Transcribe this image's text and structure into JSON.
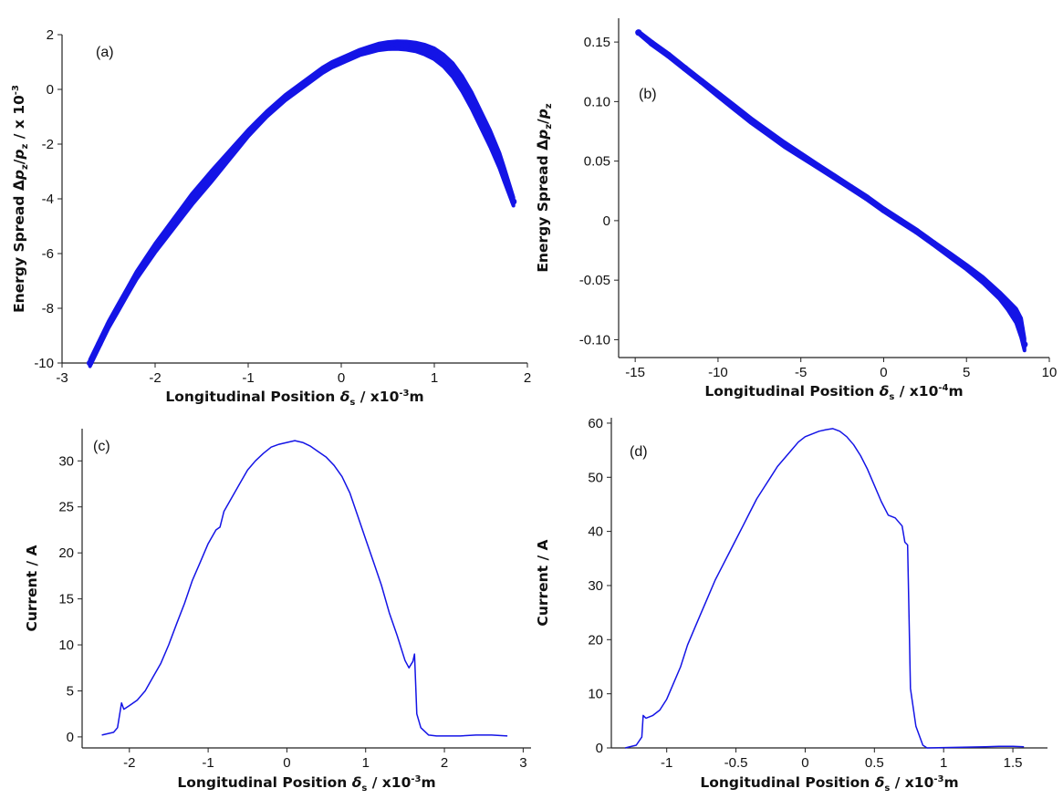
{
  "chart_data": [
    {
      "panel": "(a)",
      "type": "scatter",
      "xlabel_main": "Longitudinal Position ",
      "xlabel_sym": "δ",
      "xlabel_sub": "s",
      "xlabel_unit": " / x10",
      "xlabel_exp": "-3",
      "xlabel_tail": "m",
      "ylabel_main": "Energy Spread Δ",
      "ylabel_p1": "p",
      "ylabel_p1_sub": "z",
      "ylabel_slash": "/",
      "ylabel_p2": "p",
      "ylabel_p2_sub": "z",
      "ylabel_tail": " / x 10",
      "ylabel_exp": "-3",
      "xlim": [
        -3,
        2
      ],
      "ylim": [
        -10,
        2
      ],
      "xticks": [
        -3,
        -2,
        -1,
        0,
        1,
        2
      ],
      "xtick_labels": [
        "-3",
        "-2",
        "-1",
        "0",
        "1",
        "2"
      ],
      "yticks": [
        -10,
        -8,
        -6,
        -4,
        -2,
        0,
        2
      ],
      "ytick_labels": [
        "-10",
        "-8",
        "-6",
        "-4",
        "-2",
        "0",
        "2"
      ],
      "color": "#1414e6",
      "x": [
        -2.7,
        -2.6,
        -2.5,
        -2.4,
        -2.3,
        -2.2,
        -2.1,
        -2.0,
        -1.9,
        -1.8,
        -1.7,
        -1.6,
        -1.5,
        -1.4,
        -1.3,
        -1.2,
        -1.1,
        -1.0,
        -0.9,
        -0.8,
        -0.7,
        -0.6,
        -0.5,
        -0.4,
        -0.3,
        -0.2,
        -0.1,
        0.0,
        0.1,
        0.2,
        0.3,
        0.4,
        0.5,
        0.6,
        0.7,
        0.8,
        0.9,
        1.0,
        1.1,
        1.2,
        1.3,
        1.4,
        1.5,
        1.6,
        1.7,
        1.75,
        1.8,
        1.85
      ],
      "y": [
        -10.0,
        -9.3,
        -8.6,
        -8.0,
        -7.4,
        -6.8,
        -6.3,
        -5.8,
        -5.35,
        -4.9,
        -4.45,
        -4.0,
        -3.6,
        -3.2,
        -2.8,
        -2.4,
        -2.0,
        -1.6,
        -1.25,
        -0.9,
        -0.6,
        -0.3,
        -0.05,
        0.2,
        0.45,
        0.7,
        0.9,
        1.05,
        1.2,
        1.35,
        1.45,
        1.55,
        1.6,
        1.62,
        1.6,
        1.55,
        1.45,
        1.3,
        1.05,
        0.7,
        0.2,
        -0.4,
        -1.1,
        -1.8,
        -2.6,
        -3.1,
        -3.6,
        -4.1
      ],
      "band_halfwidth": [
        0.12,
        0.12,
        0.12,
        0.13,
        0.13,
        0.14,
        0.15,
        0.16,
        0.17,
        0.18,
        0.19,
        0.2,
        0.2,
        0.2,
        0.18,
        0.16,
        0.14,
        0.12,
        0.11,
        0.1,
        0.1,
        0.1,
        0.1,
        0.1,
        0.1,
        0.1,
        0.1,
        0.1,
        0.1,
        0.1,
        0.11,
        0.12,
        0.13,
        0.14,
        0.15,
        0.16,
        0.18,
        0.2,
        0.22,
        0.25,
        0.28,
        0.3,
        0.3,
        0.3,
        0.28,
        0.25,
        0.2,
        0.15
      ]
    },
    {
      "panel": "(b)",
      "type": "scatter",
      "xlabel_main": "Longitudinal Position ",
      "xlabel_sym": "δ",
      "xlabel_sub": "s",
      "xlabel_unit": " / x10",
      "xlabel_exp": "-4",
      "xlabel_tail": "m",
      "ylabel_main": "Energy Spread Δ",
      "ylabel_p1": "p",
      "ylabel_p1_sub": "z",
      "ylabel_slash": "/",
      "ylabel_p2": "p",
      "ylabel_p2_sub": "z",
      "xlim": [
        -16,
        10
      ],
      "ylim": [
        -0.115,
        0.17
      ],
      "xticks": [
        -15,
        -10,
        -5,
        0,
        5,
        10
      ],
      "xtick_labels": [
        "-15",
        "-10",
        "-5",
        "0",
        "5",
        "10"
      ],
      "yticks": [
        -0.1,
        -0.05,
        0,
        0.05,
        0.1,
        0.15
      ],
      "ytick_labels": [
        "-0.10",
        "-0.05",
        "0",
        "0.05",
        "0.10",
        "0.15"
      ],
      "color": "#1414e6",
      "x": [
        -14.8,
        -14,
        -13,
        -12,
        -11,
        -10,
        -9,
        -8,
        -7,
        -6,
        -5,
        -4,
        -3,
        -2,
        -1,
        0,
        1,
        2,
        3,
        4,
        5,
        6,
        7,
        7.5,
        8,
        8.3,
        8.5
      ],
      "y": [
        0.158,
        0.149,
        0.139,
        0.128,
        0.117,
        0.106,
        0.095,
        0.084,
        0.074,
        0.064,
        0.055,
        0.046,
        0.037,
        0.028,
        0.019,
        0.009,
        0.0,
        -0.009,
        -0.019,
        -0.029,
        -0.039,
        -0.05,
        -0.063,
        -0.071,
        -0.08,
        -0.09,
        -0.104
      ],
      "band_halfwidth": [
        0.001,
        0.0015,
        0.0015,
        0.0015,
        0.0015,
        0.0018,
        0.002,
        0.002,
        0.002,
        0.002,
        0.0018,
        0.0016,
        0.0015,
        0.0015,
        0.0015,
        0.0015,
        0.0015,
        0.0015,
        0.0015,
        0.0018,
        0.002,
        0.0025,
        0.003,
        0.004,
        0.006,
        0.008,
        0.005
      ]
    },
    {
      "panel": "(c)",
      "type": "line",
      "xlabel_main": "Longitudinal Position ",
      "xlabel_sym": "δ",
      "xlabel_sub": "s",
      "xlabel_unit": " / x10",
      "xlabel_exp": "-3",
      "xlabel_tail": "m",
      "ylabel": "Current / A",
      "xlim": [
        -2.6,
        3.1
      ],
      "ylim": [
        -1.2,
        33.5
      ],
      "xticks": [
        -2,
        -1,
        0,
        1,
        2,
        3
      ],
      "xtick_labels": [
        "-2",
        "-1",
        "0",
        "1",
        "2",
        "3"
      ],
      "yticks": [
        0,
        5,
        10,
        15,
        20,
        25,
        30
      ],
      "ytick_labels": [
        "0",
        "5",
        "10",
        "15",
        "20",
        "25",
        "30"
      ],
      "color": "#1414e6",
      "x": [
        -2.35,
        -2.2,
        -2.15,
        -2.1,
        -2.07,
        -2.0,
        -1.9,
        -1.8,
        -1.7,
        -1.6,
        -1.5,
        -1.4,
        -1.3,
        -1.2,
        -1.1,
        -1.0,
        -0.9,
        -0.85,
        -0.8,
        -0.7,
        -0.6,
        -0.5,
        -0.4,
        -0.3,
        -0.2,
        -0.1,
        0.0,
        0.1,
        0.2,
        0.3,
        0.4,
        0.5,
        0.6,
        0.7,
        0.8,
        0.9,
        1.0,
        1.1,
        1.2,
        1.3,
        1.4,
        1.5,
        1.55,
        1.6,
        1.62,
        1.65,
        1.7,
        1.8,
        1.9,
        2.0,
        2.2,
        2.4,
        2.6,
        2.8
      ],
      "y": [
        0.2,
        0.5,
        1.0,
        3.7,
        3.0,
        3.4,
        4.0,
        5.0,
        6.5,
        8.0,
        10.0,
        12.3,
        14.5,
        17.0,
        19.0,
        21.0,
        22.5,
        22.8,
        24.5,
        26.0,
        27.5,
        29.0,
        30.0,
        30.8,
        31.5,
        31.8,
        32.0,
        32.2,
        32.0,
        31.6,
        31.0,
        30.4,
        29.5,
        28.3,
        26.5,
        24.0,
        21.5,
        19.0,
        16.5,
        13.5,
        11.0,
        8.3,
        7.5,
        8.2,
        9.0,
        2.5,
        1.0,
        0.2,
        0.1,
        0.1,
        0.1,
        0.2,
        0.2,
        0.1
      ]
    },
    {
      "panel": "(d)",
      "type": "line",
      "xlabel_main": "Longitudinal Position ",
      "xlabel_sym": "δ",
      "xlabel_sub": "s",
      "xlabel_unit": " / x10",
      "xlabel_exp": "-3",
      "xlabel_tail": "m",
      "ylabel": "Current / A",
      "xlim": [
        -1.4,
        1.75
      ],
      "ylim": [
        0,
        61
      ],
      "xticks": [
        -1,
        -0.5,
        0,
        0.5,
        1,
        1.5
      ],
      "xtick_labels": [
        "-1",
        "-0.5",
        "0",
        "0.5",
        "1",
        "1.5"
      ],
      "yticks": [
        0,
        10,
        20,
        30,
        40,
        50,
        60
      ],
      "ytick_labels": [
        "0",
        "10",
        "20",
        "30",
        "40",
        "50",
        "60"
      ],
      "color": "#1414e6",
      "x": [
        -1.3,
        -1.22,
        -1.18,
        -1.17,
        -1.15,
        -1.1,
        -1.05,
        -1.0,
        -0.95,
        -0.9,
        -0.85,
        -0.8,
        -0.75,
        -0.7,
        -0.65,
        -0.6,
        -0.55,
        -0.5,
        -0.45,
        -0.4,
        -0.35,
        -0.3,
        -0.25,
        -0.2,
        -0.15,
        -0.1,
        -0.05,
        0.0,
        0.05,
        0.1,
        0.15,
        0.2,
        0.25,
        0.3,
        0.35,
        0.4,
        0.45,
        0.5,
        0.55,
        0.6,
        0.65,
        0.7,
        0.72,
        0.74,
        0.75,
        0.76,
        0.8,
        0.85,
        0.88,
        1.3,
        1.4,
        1.5,
        1.58
      ],
      "y": [
        0.0,
        0.5,
        2.0,
        6.0,
        5.5,
        6.0,
        7.0,
        9.0,
        12.0,
        15.0,
        19.0,
        22.0,
        25.0,
        28.0,
        31.0,
        33.5,
        36.0,
        38.5,
        41.0,
        43.5,
        46.0,
        48.0,
        50.0,
        52.0,
        53.5,
        55.0,
        56.5,
        57.5,
        58.0,
        58.5,
        58.8,
        59.0,
        58.5,
        57.5,
        56.0,
        54.0,
        51.5,
        48.5,
        45.5,
        43.0,
        42.5,
        41.0,
        38.0,
        37.5,
        24.0,
        11.0,
        4.0,
        0.5,
        0.0,
        0.2,
        0.3,
        0.3,
        0.2
      ]
    }
  ]
}
